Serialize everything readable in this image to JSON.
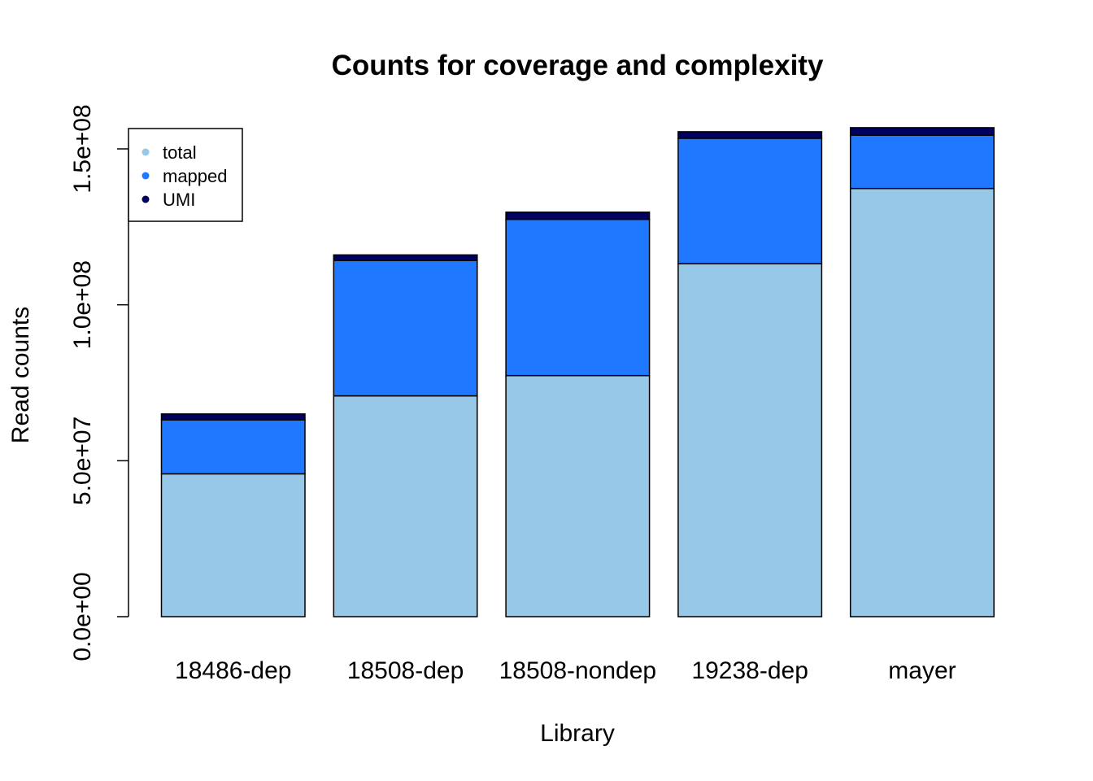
{
  "chart_data": {
    "type": "bar",
    "stacked": true,
    "title": "Counts for coverage and complexity",
    "xlabel": "Library",
    "ylabel": "Read counts",
    "ylim": [
      0,
      150000000
    ],
    "yticks": [
      "0.0e+00",
      "5.0e+07",
      "1.0e+08",
      "1.5e+08"
    ],
    "ytick_values": [
      0,
      50000000,
      100000000,
      150000000
    ],
    "categories": [
      "18486-dep",
      "18508-dep",
      "18508-nondep",
      "19238-dep",
      "mayer"
    ],
    "series": [
      {
        "name": "total",
        "color": "#97c8e8",
        "values": [
          45800000,
          70800000,
          77300000,
          113200000,
          137300000
        ]
      },
      {
        "name": "mapped",
        "color": "#1f78ff",
        "values": [
          17300000,
          43400000,
          50100000,
          40200000,
          17100000
        ]
      },
      {
        "name": "UMI",
        "color": "#00005e",
        "values": [
          1900000,
          1800000,
          2300000,
          2100000,
          2400000
        ]
      }
    ],
    "legend_position": "top-left",
    "grid": false
  }
}
